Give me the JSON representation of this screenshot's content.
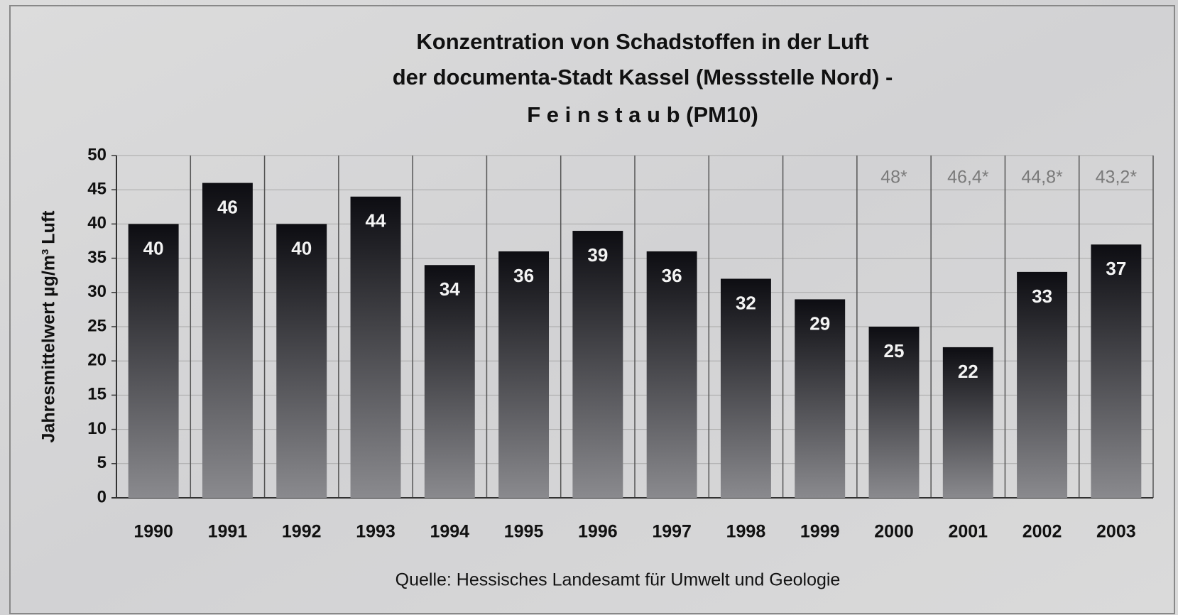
{
  "chart_data": {
    "type": "bar",
    "title": [
      "Konzentration von Schadstoffen in der Luft",
      "der documenta-Stadt Kassel (Messstelle Nord) -",
      "F e i n s t a u b  (PM10)"
    ],
    "y_label": "Jahresmittelwert µg/m³  Luft",
    "source": "Quelle: Hessisches Landesamt für Umwelt und Geologie",
    "categories": [
      "1990",
      "1991",
      "1992",
      "1993",
      "1994",
      "1995",
      "1996",
      "1997",
      "1998",
      "1999",
      "2000",
      "2001",
      "2002",
      "2003"
    ],
    "values": [
      40,
      46,
      40,
      44,
      34,
      36,
      39,
      36,
      32,
      29,
      25,
      22,
      33,
      37
    ],
    "annotations": [
      {
        "category": "2000",
        "text": "48*"
      },
      {
        "category": "2001",
        "text": "46,4*"
      },
      {
        "category": "2002",
        "text": "44,8*"
      },
      {
        "category": "2003",
        "text": "43,2*"
      }
    ],
    "ylim": [
      0,
      50
    ],
    "yticks": [
      0,
      5,
      10,
      15,
      20,
      25,
      30,
      35,
      40,
      45,
      50
    ],
    "grid": true,
    "color_top": "#0d0d12",
    "color_bottom": "#8a8a8e"
  }
}
